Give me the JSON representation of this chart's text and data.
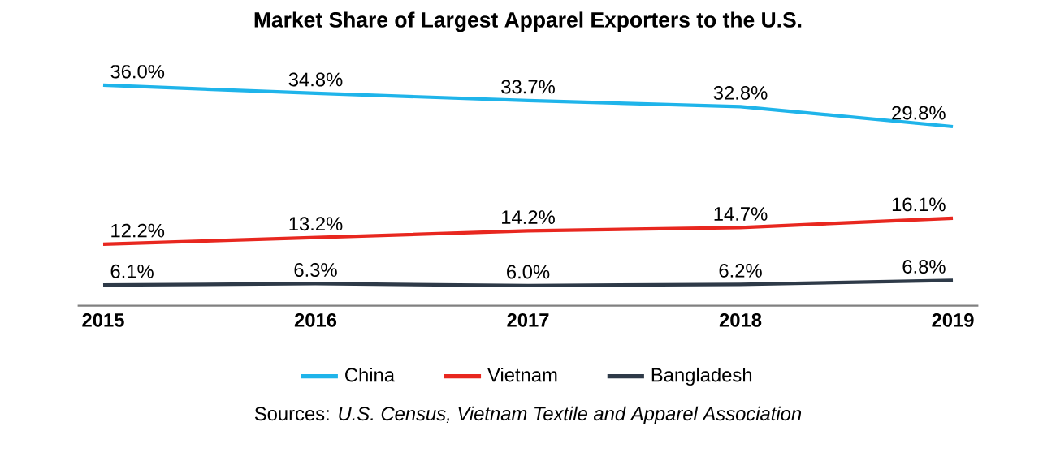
{
  "chart_data": {
    "type": "line",
    "title": "Market Share of Largest Apparel Exporters to the U.S.",
    "categories": [
      "2015",
      "2016",
      "2017",
      "2018",
      "2019"
    ],
    "series": [
      {
        "name": "China",
        "color": "#1fb4ea",
        "values": [
          36.0,
          34.8,
          33.7,
          32.8,
          29.8
        ],
        "value_labels": [
          "36.0%",
          "34.8%",
          "33.7%",
          "32.8%",
          "29.8%"
        ]
      },
      {
        "name": "Vietnam",
        "color": "#e8271f",
        "values": [
          12.2,
          13.2,
          14.2,
          14.7,
          16.1
        ],
        "value_labels": [
          "12.2%",
          "13.2%",
          "14.2%",
          "14.7%",
          "16.1%"
        ]
      },
      {
        "name": "Bangladesh",
        "color": "#2e3a48",
        "values": [
          6.1,
          6.3,
          6.0,
          6.2,
          6.8
        ],
        "value_labels": [
          "6.1%",
          "6.3%",
          "6.0%",
          "6.2%",
          "6.8%"
        ]
      }
    ],
    "legend": "bottom",
    "marker": "none",
    "annotations": [
      "Sources: *U.S. Census, Vietnam Textile and Apparel Association*"
    ]
  }
}
